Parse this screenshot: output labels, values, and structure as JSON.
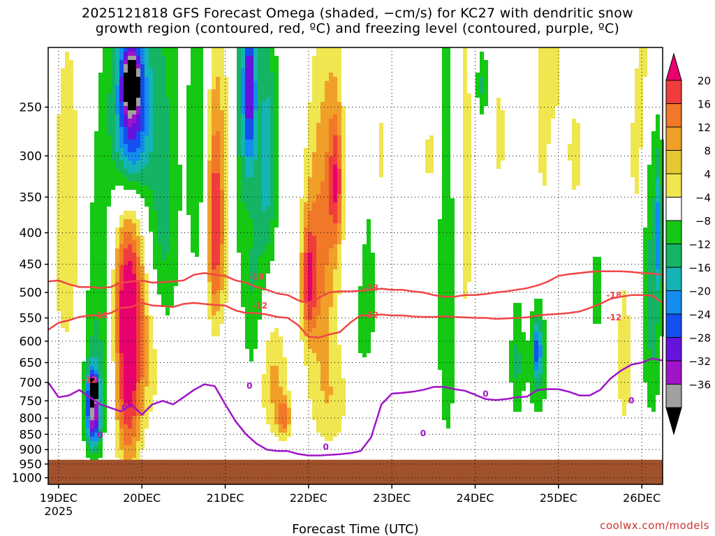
{
  "chart_data": {
    "type": "heatmap",
    "title": "2025121818 GFS Forecast Omega (shaded, −cm/s) for KC27 with dendritic snow",
    "subtitle": "growth region (contoured, red, ºC) and freezing level (contoured, purple, ºC)",
    "xlabel": "Forecast Time (UTC)",
    "ylabel": "",
    "credit": "coolwx.com/models",
    "x_ticks": [
      "19DEC",
      "20DEC",
      "21DEC",
      "22DEC",
      "23DEC",
      "24DEC",
      "25DEC",
      "26DEC"
    ],
    "x_year": "2025",
    "x_range_hours": [
      -3,
      174
    ],
    "y_levels": [
      "250",
      "300",
      "350",
      "400",
      "450",
      "500",
      "550",
      "600",
      "650",
      "700",
      "750",
      "800",
      "850",
      "900",
      "950",
      "1000"
    ],
    "y_range_hpa": [
      200,
      1025
    ],
    "surface_pressure_hpa": 935,
    "colorbar": {
      "labels": [
        "20",
        "16",
        "12",
        "8",
        "4",
        "−4",
        "−8",
        "−12",
        "−16",
        "−20",
        "−24",
        "−28",
        "−32",
        "−36"
      ],
      "colors": [
        "#e8006e",
        "#f03c3c",
        "#f07828",
        "#f0a028",
        "#e6c832",
        "#f0e650",
        "#ffffff",
        "#14c814",
        "#14b464",
        "#14b4b4",
        "#148cf0",
        "#1450f0",
        "#6414dc",
        "#a014c8",
        "#a0a0a0",
        "#000000"
      ]
    },
    "contours": {
      "dendritic_minus12": {
        "label": "-12",
        "color": "#f04646",
        "hours": [
          -3,
          0,
          3,
          6,
          9,
          12,
          15,
          18,
          21,
          24,
          27,
          30,
          33,
          36,
          39,
          42,
          45,
          48,
          51,
          54,
          57,
          60,
          63,
          66,
          69,
          72,
          75,
          78,
          81,
          84,
          87,
          90,
          93,
          96,
          99,
          102,
          105,
          108,
          111,
          114,
          117,
          120,
          123,
          126,
          129,
          132,
          135,
          138,
          141,
          144,
          147,
          150,
          153,
          156,
          159,
          162,
          165,
          168,
          171,
          174
        ],
        "hpa": [
          575,
          560,
          555,
          548,
          545,
          545,
          540,
          530,
          528,
          520,
          525,
          526,
          528,
          522,
          520,
          522,
          524,
          525,
          535,
          540,
          540,
          543,
          548,
          550,
          565,
          590,
          592,
          585,
          580,
          560,
          545,
          545,
          543,
          545,
          545,
          547,
          548,
          548,
          547,
          548,
          549,
          550,
          550,
          552,
          551,
          550,
          549,
          545,
          543,
          542,
          540,
          537,
          530,
          522,
          512,
          508,
          505,
          505,
          506,
          520
        ]
      },
      "dendritic_minus18": {
        "label": "-18",
        "color": "#f04646",
        "hours": [
          -3,
          0,
          3,
          6,
          9,
          12,
          15,
          18,
          21,
          24,
          27,
          30,
          33,
          36,
          39,
          42,
          45,
          48,
          51,
          54,
          57,
          60,
          63,
          66,
          69,
          72,
          75,
          78,
          81,
          84,
          87,
          90,
          93,
          96,
          99,
          102,
          105,
          108,
          111,
          114,
          117,
          120,
          123,
          126,
          129,
          132,
          135,
          138,
          141,
          144,
          147,
          150,
          153,
          156,
          159,
          162,
          165,
          168,
          171,
          174
        ],
        "hpa": [
          480,
          478,
          485,
          490,
          490,
          492,
          490,
          482,
          480,
          478,
          482,
          481,
          480,
          478,
          468,
          465,
          468,
          470,
          478,
          482,
          490,
          495,
          502,
          505,
          515,
          520,
          510,
          500,
          498,
          498,
          497,
          495,
          493,
          495,
          495,
          498,
          500,
          505,
          508,
          508,
          505,
          505,
          503,
          500,
          498,
          495,
          492,
          487,
          480,
          470,
          467,
          465,
          463,
          462,
          462,
          462,
          463,
          465,
          466,
          468
        ]
      },
      "freezing_level": {
        "label": "0",
        "color": "#a014c8",
        "hours": [
          -3,
          0,
          3,
          6,
          9,
          12,
          15,
          18,
          21,
          24,
          27,
          30,
          33,
          36,
          39,
          42,
          45,
          48,
          51,
          54,
          57,
          60,
          63,
          66,
          69,
          72,
          75,
          78,
          81,
          84,
          87,
          90,
          93,
          96,
          99,
          102,
          105,
          108,
          111,
          114,
          117,
          120,
          123,
          126,
          129,
          132,
          135,
          138,
          141,
          144,
          147,
          150,
          153,
          156,
          159,
          162,
          165,
          168,
          171,
          174
        ],
        "hpa": [
          700,
          740,
          735,
          720,
          740,
          760,
          770,
          780,
          760,
          790,
          760,
          750,
          760,
          740,
          720,
          705,
          710,
          760,
          810,
          850,
          880,
          900,
          905,
          905,
          915,
          920,
          920,
          918,
          916,
          912,
          905,
          860,
          760,
          730,
          728,
          725,
          720,
          712,
          712,
          718,
          722,
          733,
          745,
          748,
          745,
          740,
          738,
          720,
          718,
          718,
          725,
          735,
          735,
          720,
          690,
          670,
          655,
          650,
          640,
          645
        ]
      }
    },
    "contour_labels": [
      {
        "text": "-18",
        "hour": 57,
        "hpa": 472
      },
      {
        "text": "-12",
        "hour": 58,
        "hpa": 526
      },
      {
        "text": "-18",
        "hour": 90,
        "hpa": 492
      },
      {
        "text": "-12",
        "hour": 90,
        "hpa": 545
      },
      {
        "text": "-18",
        "hour": 160,
        "hpa": 506
      },
      {
        "text": "-12",
        "hour": 160,
        "hpa": 550
      },
      {
        "text": "-12",
        "hour": 9,
        "hpa": 695
      },
      {
        "text": "-18",
        "hour": 12,
        "hpa": 546
      },
      {
        "text": "0",
        "hour": 12,
        "hpa": 854
      },
      {
        "text": "0",
        "hour": 55,
        "hpa": 710
      },
      {
        "text": "0",
        "hour": 77,
        "hpa": 893
      },
      {
        "text": "0",
        "hour": 105,
        "hpa": 848
      },
      {
        "text": "0",
        "hour": 123,
        "hpa": 732
      },
      {
        "text": "0",
        "hour": 165,
        "hpa": 750
      },
      {
        "text": "0",
        "hour": 19,
        "hpa": 770
      }
    ],
    "omega_blobs": [
      {
        "hour": 20,
        "hpa": 700,
        "rx": 4,
        "ry": 250,
        "v": 22
      },
      {
        "hour": 20,
        "hpa": 500,
        "rx": 5,
        "ry": 150,
        "v": 16
      },
      {
        "hour": 21,
        "hpa": 250,
        "rx": 5,
        "ry": 90,
        "v": -30
      },
      {
        "hour": 21,
        "hpa": 230,
        "rx": 2,
        "ry": 20,
        "v": -36
      },
      {
        "hour": 10,
        "hpa": 780,
        "rx": 2,
        "ry": 110,
        "v": -30
      },
      {
        "hour": 10,
        "hpa": 720,
        "rx": 1,
        "ry": 30,
        "v": -38
      },
      {
        "hour": 3,
        "hpa": 400,
        "rx": 5,
        "ry": 250,
        "v": 8
      },
      {
        "hour": 12,
        "hpa": 550,
        "rx": 6,
        "ry": 320,
        "v": -9
      },
      {
        "hour": 30,
        "hpa": 350,
        "rx": 5,
        "ry": 250,
        "v": -10
      },
      {
        "hour": 27,
        "hpa": 650,
        "rx": 4,
        "ry": 150,
        "v": 6
      },
      {
        "hour": 40,
        "hpa": 300,
        "rx": 3,
        "ry": 200,
        "v": -8
      },
      {
        "hour": 48,
        "hpa": 350,
        "rx": 6,
        "ry": 200,
        "v": 9
      },
      {
        "hour": 45,
        "hpa": 400,
        "rx": 2,
        "ry": 150,
        "v": 14
      },
      {
        "hour": 52,
        "hpa": 300,
        "rx": 3,
        "ry": 200,
        "v": -12
      },
      {
        "hour": 55,
        "hpa": 230,
        "rx": 2,
        "ry": 80,
        "v": -24
      },
      {
        "hour": 56,
        "hpa": 500,
        "rx": 3,
        "ry": 200,
        "v": -8
      },
      {
        "hour": 60,
        "hpa": 300,
        "rx": 3,
        "ry": 150,
        "v": -14
      },
      {
        "hour": 62,
        "hpa": 700,
        "rx": 4,
        "ry": 150,
        "v": 9
      },
      {
        "hour": 65,
        "hpa": 800,
        "rx": 2,
        "ry": 60,
        "v": 12
      },
      {
        "hour": 74,
        "hpa": 450,
        "rx": 4,
        "ry": 200,
        "v": 10
      },
      {
        "hour": 72,
        "hpa": 480,
        "rx": 2,
        "ry": 100,
        "v": 14
      },
      {
        "hour": 78,
        "hpa": 350,
        "rx": 4,
        "ry": 250,
        "v": 8
      },
      {
        "hour": 80,
        "hpa": 330,
        "rx": 2,
        "ry": 80,
        "v": 14
      },
      {
        "hour": 78,
        "hpa": 750,
        "rx": 6,
        "ry": 150,
        "v": 7
      },
      {
        "hour": 88,
        "hpa": 500,
        "rx": 4,
        "ry": 200,
        "v": -7
      },
      {
        "hour": 86,
        "hpa": 400,
        "rx": 2,
        "ry": 100,
        "v": 6
      },
      {
        "hour": 93,
        "hpa": 300,
        "rx": 2,
        "ry": 100,
        "v": 5
      },
      {
        "hour": 107,
        "hpa": 300,
        "rx": 2,
        "ry": 100,
        "v": 5
      },
      {
        "hour": 112,
        "hpa": 500,
        "rx": 3,
        "ry": 400,
        "v": -8
      },
      {
        "hour": 117,
        "hpa": 350,
        "rx": 3,
        "ry": 300,
        "v": 6
      },
      {
        "hour": 122,
        "hpa": 230,
        "rx": 2,
        "ry": 30,
        "v": -9
      },
      {
        "hour": 127,
        "hpa": 280,
        "rx": 2,
        "ry": 60,
        "v": 6
      },
      {
        "hour": 132,
        "hpa": 650,
        "rx": 2,
        "ry": 150,
        "v": -9
      },
      {
        "hour": 138,
        "hpa": 650,
        "rx": 3,
        "ry": 150,
        "v": -9
      },
      {
        "hour": 138,
        "hpa": 620,
        "rx": 1,
        "ry": 60,
        "v": -16
      },
      {
        "hour": 141,
        "hpa": 250,
        "rx": 4,
        "ry": 120,
        "v": 8
      },
      {
        "hour": 143,
        "hpa": 300,
        "rx": 2,
        "ry": 40,
        "v": -8
      },
      {
        "hour": 149,
        "hpa": 300,
        "rx": 3,
        "ry": 80,
        "v": 5
      },
      {
        "hour": 155,
        "hpa": 500,
        "rx": 2,
        "ry": 80,
        "v": -8
      },
      {
        "hour": 163,
        "hpa": 650,
        "rx": 2,
        "ry": 180,
        "v": 8
      },
      {
        "hour": 167,
        "hpa": 300,
        "rx": 3,
        "ry": 100,
        "v": 6
      },
      {
        "hour": 170,
        "hpa": 200,
        "rx": 3,
        "ry": 60,
        "v": 6
      },
      {
        "hour": 171,
        "hpa": 500,
        "rx": 3,
        "ry": 300,
        "v": -10
      },
      {
        "hour": 173,
        "hpa": 400,
        "rx": 1,
        "ry": 100,
        "v": -14
      }
    ]
  }
}
